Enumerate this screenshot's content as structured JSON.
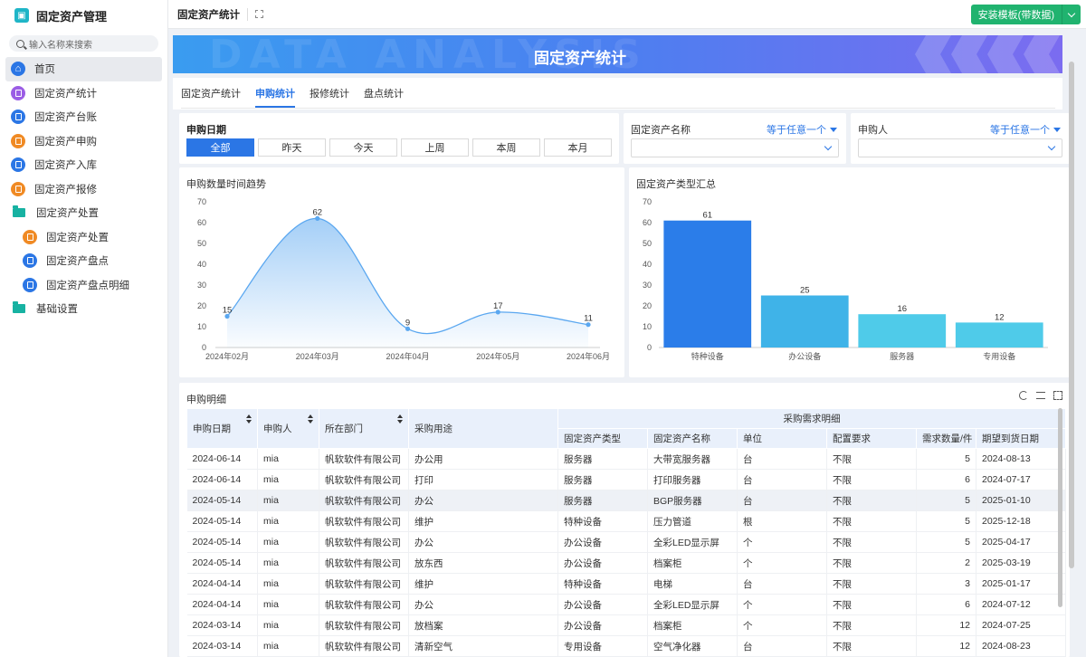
{
  "app": {
    "name": "固定资产管理",
    "search_placeholder": "输入名称来搜索"
  },
  "sidebar": {
    "items": [
      {
        "label": "首页",
        "icon": "home-icon"
      },
      {
        "label": "固定资产统计",
        "icon": "chart-icon"
      },
      {
        "label": "固定资产台账",
        "icon": "document-icon"
      },
      {
        "label": "固定资产申购",
        "icon": "document-icon"
      },
      {
        "label": "固定资产入库",
        "icon": "document-icon"
      },
      {
        "label": "固定资产报修",
        "icon": "document-icon"
      },
      {
        "label": "固定资产处置",
        "icon": "folder-icon"
      },
      {
        "label": "固定资产处置",
        "icon": "document-icon"
      },
      {
        "label": "固定资产盘点",
        "icon": "document-icon"
      },
      {
        "label": "固定资产盘点明细",
        "icon": "document-icon"
      },
      {
        "label": "基础设置",
        "icon": "folder-icon"
      }
    ]
  },
  "topbar": {
    "title": "固定资产统计",
    "install_label": "安装模板(带数据)"
  },
  "banner": {
    "title": "固定资产统计",
    "bg_text": "DATA ANALYSIS"
  },
  "tabs": [
    "固定资产统计",
    "申购统计",
    "报修统计",
    "盘点统计"
  ],
  "filters": {
    "date_title": "申购日期",
    "date_options": [
      "全部",
      "昨天",
      "今天",
      "上周",
      "本周",
      "本月"
    ],
    "asset_name_label": "固定资产名称",
    "asset_name_op": "等于任意一个",
    "applicant_label": "申购人",
    "applicant_op": "等于任意一个"
  },
  "charts": {
    "trend_title": "申购数量时间趋势",
    "type_title": "固定资产类型汇总"
  },
  "chart_data": [
    {
      "type": "area",
      "title": "申购数量时间趋势",
      "categories": [
        "2024年02月",
        "2024年03月",
        "2024年04月",
        "2024年05月",
        "2024年06月"
      ],
      "values": [
        15,
        62,
        9,
        17,
        11
      ],
      "ylim": [
        0,
        70
      ],
      "yticks": [
        0,
        10,
        20,
        30,
        40,
        50,
        60,
        70
      ],
      "color": "#5aa7f0"
    },
    {
      "type": "bar",
      "title": "固定资产类型汇总",
      "categories": [
        "特种设备",
        "办公设备",
        "服务器",
        "专用设备"
      ],
      "values": [
        61,
        25,
        16,
        12
      ],
      "ylim": [
        0,
        70
      ],
      "yticks": [
        0,
        10,
        20,
        30,
        40,
        50,
        60,
        70
      ],
      "colors": [
        "#2b7de9",
        "#3fb3e8",
        "#4fcbe9",
        "#4fcbe9"
      ]
    }
  ],
  "table": {
    "title": "申购明细",
    "group_header": "采购需求明细",
    "headers": [
      "申购日期",
      "申购人",
      "所在部门",
      "采购用途",
      "固定资产类型",
      "固定资产名称",
      "单位",
      "配置要求",
      "需求数量/件",
      "期望到货日期"
    ],
    "rows": [
      [
        "2024-06-14",
        "mia",
        "帆软软件有限公司",
        "办公用",
        "服务器",
        "大带宽服务器",
        "台",
        "不限",
        "5",
        "2024-08-13"
      ],
      [
        "2024-06-14",
        "mia",
        "帆软软件有限公司",
        "打印",
        "服务器",
        "打印服务器",
        "台",
        "不限",
        "6",
        "2024-07-17"
      ],
      [
        "2024-05-14",
        "mia",
        "帆软软件有限公司",
        "办公",
        "服务器",
        "BGP服务器",
        "台",
        "不限",
        "5",
        "2025-01-10"
      ],
      [
        "2024-05-14",
        "mia",
        "帆软软件有限公司",
        "维护",
        "特种设备",
        "压力管道",
        "根",
        "不限",
        "5",
        "2025-12-18"
      ],
      [
        "2024-05-14",
        "mia",
        "帆软软件有限公司",
        "办公",
        "办公设备",
        "全彩LED显示屏",
        "个",
        "不限",
        "5",
        "2025-04-17"
      ],
      [
        "2024-05-14",
        "mia",
        "帆软软件有限公司",
        "放东西",
        "办公设备",
        "档案柜",
        "个",
        "不限",
        "2",
        "2025-03-19"
      ],
      [
        "2024-04-14",
        "mia",
        "帆软软件有限公司",
        "维护",
        "特种设备",
        "电梯",
        "台",
        "不限",
        "3",
        "2025-01-17"
      ],
      [
        "2024-04-14",
        "mia",
        "帆软软件有限公司",
        "办公",
        "办公设备",
        "全彩LED显示屏",
        "个",
        "不限",
        "6",
        "2024-07-12"
      ],
      [
        "2024-03-14",
        "mia",
        "帆软软件有限公司",
        "放档案",
        "办公设备",
        "档案柜",
        "个",
        "不限",
        "12",
        "2024-07-25"
      ],
      [
        "2024-03-14",
        "mia",
        "帆软软件有限公司",
        "清新空气",
        "专用设备",
        "空气净化器",
        "台",
        "不限",
        "12",
        "2024-08-23"
      ]
    ]
  }
}
